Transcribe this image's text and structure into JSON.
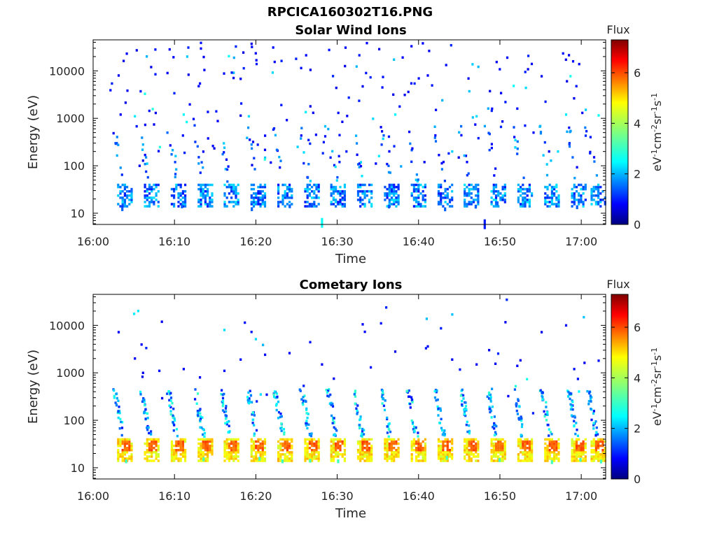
{
  "page": {
    "title": "RPCICA160302T16.PNG"
  },
  "colorbar": {
    "title": "Flux",
    "unit_base": [
      "eV",
      "cm",
      "sr",
      "s"
    ],
    "unit_exp": [
      "-1",
      "-2",
      "-1",
      "-1"
    ],
    "range": [
      0,
      7.3
    ],
    "ticks": [
      0,
      2,
      4,
      6
    ],
    "tick_labels": [
      "0",
      "2",
      "4",
      "6"
    ],
    "colormap": "jet"
  },
  "chart_data": [
    {
      "type": "heatmap",
      "title": "Solar Wind Ions",
      "xlabel": "Time",
      "ylabel": "Energy (eV)",
      "x_range": [
        "16:00",
        "17:03"
      ],
      "y_range": [
        5.8,
        45000
      ],
      "y_scale": "log",
      "x_ticks": [
        "16:00",
        "16:10",
        "16:20",
        "16:30",
        "16:40",
        "16:50",
        "17:00"
      ],
      "x_tick_minutes": [
        0,
        10,
        20,
        30,
        40,
        50,
        60
      ],
      "y_ticks": [
        10,
        100,
        1000,
        10000
      ],
      "y_tick_labels": [
        "10",
        "100",
        "1000",
        "10000"
      ],
      "grid": false,
      "scan_start_minutes": [
        3.8,
        7.1,
        10.4,
        13.7,
        16.9,
        20.2,
        23.5,
        26.8,
        30.0,
        33.3,
        36.6,
        39.9,
        43.2,
        46.4,
        49.7,
        53.0,
        56.3,
        59.6,
        62.0
      ],
      "band_energy_ev": [
        20,
        38
      ],
      "band_flux": [
        1.0,
        3.0
      ],
      "cells": [
        [
          "16:02",
          3900,
          1.0
        ],
        [
          "16:03",
          8000,
          0.8
        ],
        [
          "16:04",
          23000,
          0.9
        ],
        [
          "16:05",
          1100,
          2.6
        ],
        [
          "16:06",
          280,
          2.2
        ],
        [
          "16:07",
          12000,
          0.8
        ],
        [
          "16:09",
          9000,
          0.9
        ],
        [
          "16:10",
          160,
          2.4
        ],
        [
          "16:11",
          1200,
          2.7
        ],
        [
          "16:13",
          5400,
          0.9
        ],
        [
          "16:15",
          1400,
          1.1
        ],
        [
          "16:16",
          240,
          2.3
        ],
        [
          "16:18",
          6800,
          0.8
        ],
        [
          "16:19",
          1100,
          2.5
        ],
        [
          "16:21",
          430,
          0.9
        ],
        [
          "16:22",
          31000,
          1.0
        ],
        [
          "16:23",
          1900,
          1.1
        ],
        [
          "16:25",
          250,
          2.4
        ],
        [
          "16:26",
          1350,
          2.6
        ],
        [
          "16:28",
          7.5,
          2.8
        ],
        [
          "16:30",
          1300,
          1.0
        ],
        [
          "16:31",
          200,
          1.1
        ],
        [
          "16:33",
          4700,
          0.8
        ],
        [
          "16:35",
          160,
          2.6
        ],
        [
          "16:37",
          1200,
          2.7
        ],
        [
          "16:39",
          33000,
          0.9
        ],
        [
          "16:41",
          8000,
          0.9
        ],
        [
          "16:42",
          1500,
          1.0
        ],
        [
          "16:44",
          200,
          2.4
        ],
        [
          "16:46",
          6900,
          0.8
        ],
        [
          "16:47",
          1100,
          2.5
        ],
        [
          "16:48",
          7,
          1.1
        ],
        [
          "16:50",
          3400,
          0.9
        ],
        [
          "16:52",
          1600,
          1.0
        ],
        [
          "16:54",
          500,
          0.9
        ],
        [
          "16:55",
          7700,
          0.8
        ],
        [
          "16:57",
          200,
          2.5
        ],
        [
          "16:58",
          1200,
          2.6
        ],
        [
          "17:00",
          1300,
          0.9
        ],
        [
          "17:02",
          1150,
          2.8
        ]
      ]
    },
    {
      "type": "heatmap",
      "title": "Cometary Ions",
      "xlabel": "Time",
      "ylabel": "Energy (eV)",
      "x_range": [
        "16:00",
        "17:03"
      ],
      "y_range": [
        5.8,
        45000
      ],
      "y_scale": "log",
      "x_ticks": [
        "16:00",
        "16:10",
        "16:20",
        "16:30",
        "16:40",
        "16:50",
        "17:00"
      ],
      "x_tick_minutes": [
        0,
        10,
        20,
        30,
        40,
        50,
        60
      ],
      "y_ticks": [
        10,
        100,
        1000,
        10000
      ],
      "y_tick_labels": [
        "10",
        "100",
        "1000",
        "10000"
      ],
      "grid": false,
      "scan_start_minutes": [
        3.8,
        7.1,
        10.4,
        13.7,
        16.9,
        20.2,
        23.5,
        26.8,
        30.0,
        33.3,
        36.6,
        39.9,
        43.2,
        46.4,
        49.7,
        53.0,
        56.3,
        59.6,
        62.0
      ],
      "band_energy_ev": [
        20,
        38
      ],
      "band_flux": [
        4.2,
        5.4
      ],
      "cells": [
        [
          "16:03",
          7200,
          0.9
        ],
        [
          "16:05",
          2000,
          0.9
        ],
        [
          "16:06",
          1000,
          0.8
        ],
        [
          "16:08",
          1100,
          1.0
        ],
        [
          "16:11",
          1200,
          0.9
        ],
        [
          "16:13",
          800,
          0.9
        ],
        [
          "16:16",
          8000,
          2.5
        ],
        [
          "16:16",
          1100,
          1.0
        ],
        [
          "16:18",
          1900,
          1.0
        ],
        [
          "16:21",
          2400,
          0.9
        ],
        [
          "16:24",
          2600,
          0.9
        ],
        [
          "16:28",
          1500,
          0.9
        ],
        [
          "16:33",
          10500,
          0.9
        ],
        [
          "16:34",
          1300,
          1.0
        ],
        [
          "16:37",
          2800,
          0.8
        ],
        [
          "16:41",
          3600,
          0.9
        ],
        [
          "16:44",
          1900,
          0.8
        ],
        [
          "16:47",
          1500,
          0.9
        ],
        [
          "16:52",
          1400,
          0.9
        ],
        [
          "16:55",
          7200,
          0.8
        ],
        [
          "16:58",
          10000,
          0.9
        ],
        [
          "16:59",
          1200,
          1.0
        ],
        [
          "17:02",
          1800,
          1.0
        ]
      ]
    }
  ]
}
